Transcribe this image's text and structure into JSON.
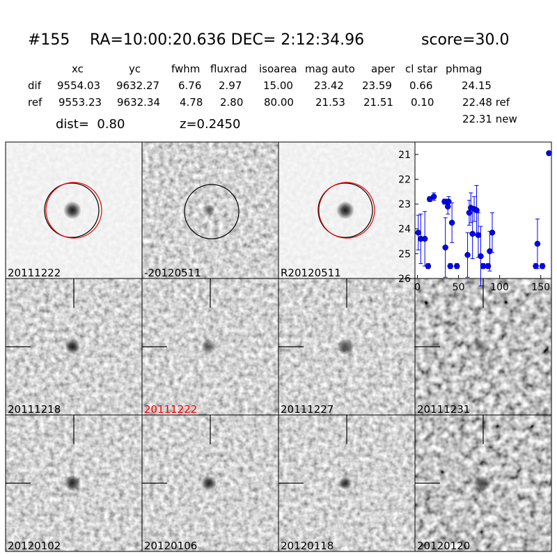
{
  "header": {
    "id": "#155",
    "coords": "RA=10:00:20.636 DEC= 2:12:34.96",
    "score": "score=30.0"
  },
  "table": {
    "columns": [
      "xc",
      "yc",
      "fwhm",
      "fluxrad",
      "isoarea",
      "mag auto",
      "aper",
      "cl star",
      "phmag"
    ],
    "rows": [
      {
        "label": "dif",
        "cells": [
          "9554.03",
          "9632.27",
          "6.76",
          "2.97",
          "15.00",
          "23.42",
          "23.59",
          "0.66",
          "24.15"
        ]
      },
      {
        "label": "ref",
        "cells": [
          "9553.23",
          "9632.34",
          "4.78",
          "2.80",
          "80.00",
          "21.53",
          "21.51",
          "0.10",
          "22.48 ref"
        ]
      }
    ],
    "note": "22.31 new"
  },
  "dist": "dist=  0.80",
  "z": "z=0.2450",
  "panels": [
    {
      "label": "20111222",
      "color": "#000000"
    },
    {
      "label": "-20120511",
      "color": "#000000"
    },
    {
      "label": "R20120511",
      "color": "#000000"
    },
    {
      "label": "20111218",
      "color": "#000000"
    },
    {
      "label": "20111222",
      "color": "#ff0000"
    },
    {
      "label": "20111227",
      "color": "#000000"
    },
    {
      "label": "20111231",
      "color": "#000000"
    },
    {
      "label": "20120102",
      "color": "#000000"
    },
    {
      "label": "20120106",
      "color": "#000000"
    },
    {
      "label": "20120118",
      "color": "#000000"
    },
    {
      "label": "20120120",
      "color": "#000000"
    }
  ],
  "chart_data": {
    "type": "scatter",
    "xlim": [
      -3,
      163
    ],
    "ylim": [
      26,
      20.5
    ],
    "xticks": [
      0,
      50,
      100,
      150
    ],
    "yticks": [
      21,
      22,
      23,
      24,
      25,
      26
    ],
    "series": [
      {
        "color": "#0000ff",
        "x": [
          1,
          4,
          9,
          13,
          15,
          20,
          33,
          34,
          37,
          38,
          40,
          42,
          48,
          61,
          63,
          65,
          67,
          69,
          72,
          74,
          77,
          80,
          86,
          88,
          91,
          144,
          146,
          152,
          160
        ],
        "values": [
          24.15,
          24.4,
          24.4,
          25.5,
          22.8,
          22.7,
          22.9,
          24.75,
          23.1,
          22.9,
          25.5,
          23.75,
          25.5,
          25.05,
          23.35,
          23.15,
          24.2,
          23.2,
          23.25,
          24.25,
          25.1,
          25.5,
          25.5,
          24.9,
          24.15,
          25.5,
          24.6,
          25.5,
          20.95
        ],
        "errors": [
          0.7,
          1.0,
          1.1,
          0.1,
          0.1,
          0.15,
          0.1,
          1.2,
          0.3,
          0.2,
          0.1,
          0.8,
          0.1,
          0.9,
          0.5,
          0.6,
          1.0,
          0.5,
          1.0,
          0.9,
          1.2,
          0.1,
          0.1,
          0.8,
          0.8,
          0.1,
          1.0,
          0.1,
          0.05
        ]
      }
    ]
  }
}
